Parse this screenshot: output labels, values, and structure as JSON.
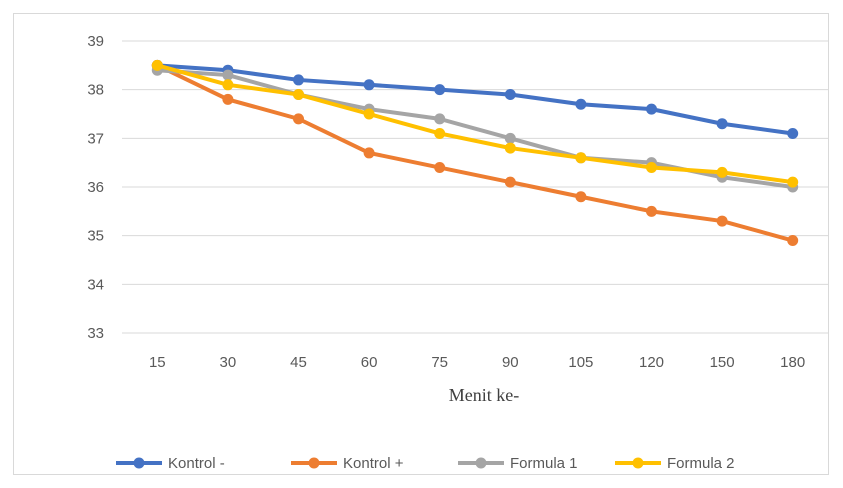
{
  "chart_data": {
    "type": "line",
    "title": "",
    "xlabel": "Menit ke-",
    "ylabel": "",
    "categories": [
      "15",
      "30",
      "45",
      "60",
      "75",
      "90",
      "105",
      "120",
      "150",
      "180"
    ],
    "ylim": [
      33,
      39
    ],
    "yticks": [
      "33",
      "34",
      "35",
      "36",
      "37",
      "38",
      "39"
    ],
    "grid": true,
    "legend": "bottom",
    "series": [
      {
        "name": "Kontrol -",
        "color": "#4472C4",
        "values": [
          38.5,
          38.4,
          38.2,
          38.1,
          38.0,
          37.9,
          37.7,
          37.6,
          37.3,
          37.1
        ]
      },
      {
        "name": "Kontrol +",
        "color": "#ED7D31",
        "values": [
          38.5,
          37.8,
          37.4,
          36.7,
          36.4,
          36.1,
          35.8,
          35.5,
          35.3,
          34.9
        ]
      },
      {
        "name": "Formula 1",
        "color": "#A5A5A5",
        "values": [
          38.4,
          38.3,
          37.9,
          37.6,
          37.4,
          37.0,
          36.6,
          36.5,
          36.2,
          36.0
        ]
      },
      {
        "name": "Formula 2",
        "color": "#FFC000",
        "values": [
          38.5,
          38.1,
          37.9,
          37.5,
          37.1,
          36.8,
          36.6,
          36.4,
          36.3,
          36.1
        ]
      }
    ]
  }
}
